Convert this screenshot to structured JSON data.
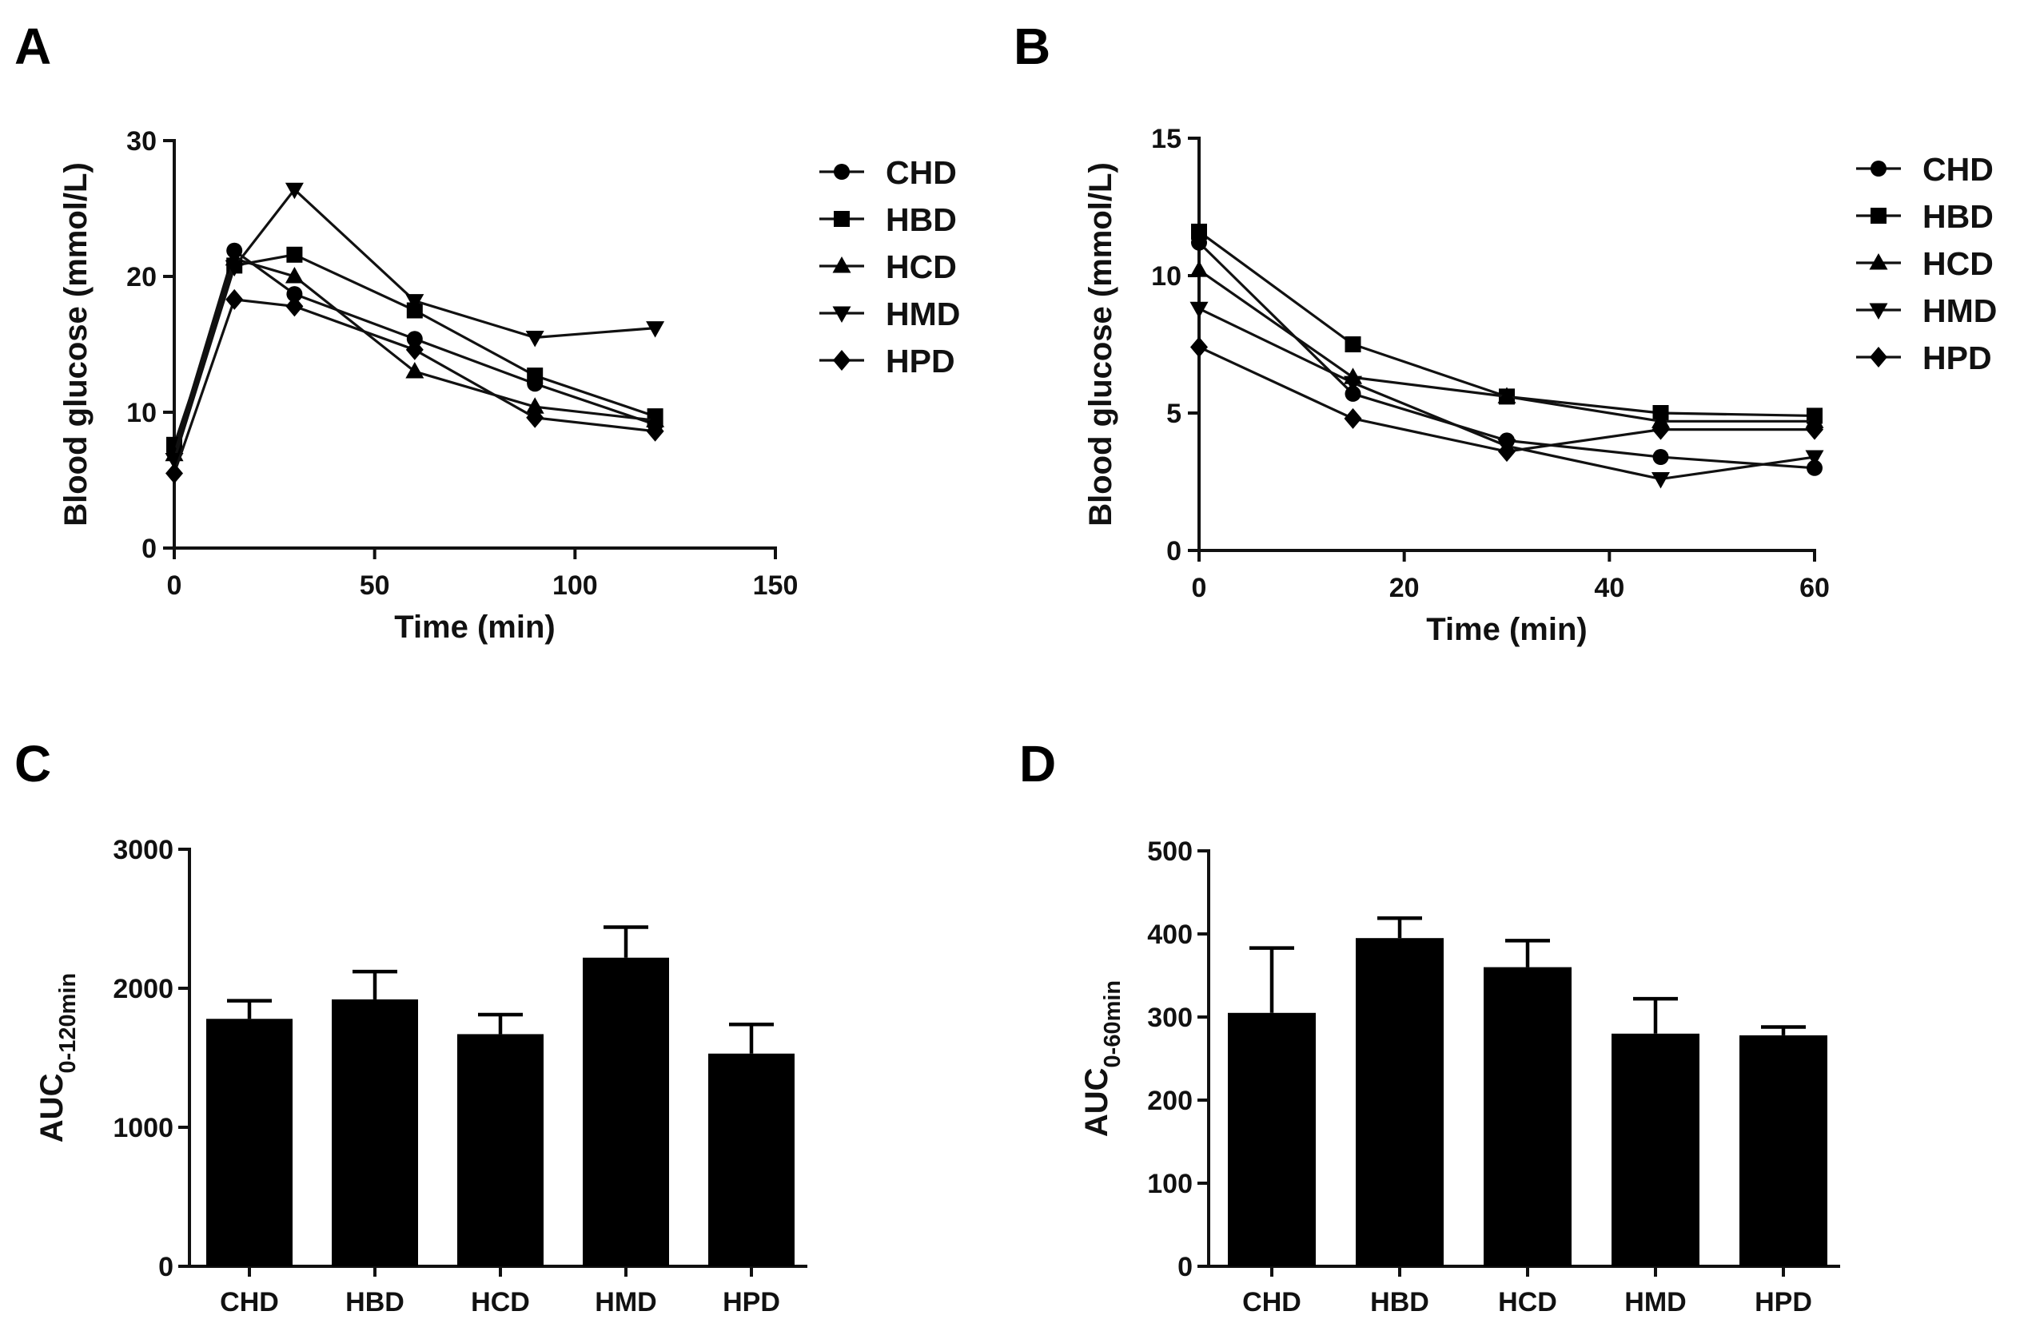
{
  "panels": [
    {
      "id": "A",
      "label": "A",
      "chart_data": {
        "type": "line",
        "xlabel": "Time (min)",
        "ylabel": "Blood glucose (mmol/L)",
        "xlim": [
          0,
          150
        ],
        "ylim": [
          0,
          30
        ],
        "xticks": [
          "0",
          "50",
          "100",
          "150"
        ],
        "yticks": [
          "0",
          "10",
          "20",
          "30"
        ],
        "x": [
          0,
          15,
          30,
          60,
          90,
          120
        ],
        "legend_position": "right",
        "series": [
          {
            "name": "CHD",
            "marker": "circle",
            "values": [
              7.2,
              21.9,
              18.7,
              15.4,
              12.1,
              9.1
            ]
          },
          {
            "name": "HBD",
            "marker": "square",
            "values": [
              7.6,
              20.8,
              21.6,
              17.5,
              12.7,
              9.7
            ]
          },
          {
            "name": "HCD",
            "marker": "triangle-up",
            "values": [
              6.9,
              21.3,
              20.0,
              13.0,
              10.4,
              9.4
            ]
          },
          {
            "name": "HMD",
            "marker": "triangle-down",
            "values": [
              6.5,
              20.7,
              26.4,
              18.2,
              15.5,
              16.2
            ]
          },
          {
            "name": "HPD",
            "marker": "diamond",
            "values": [
              5.5,
              18.3,
              17.8,
              14.6,
              9.6,
              8.6
            ]
          }
        ]
      }
    },
    {
      "id": "B",
      "label": "B",
      "chart_data": {
        "type": "line",
        "xlabel": "Time (min)",
        "ylabel": "Blood glucose (mmol/L)",
        "xlim": [
          0,
          60
        ],
        "ylim": [
          0,
          15
        ],
        "xticks": [
          "0",
          "20",
          "40",
          "60"
        ],
        "yticks": [
          "0",
          "5",
          "10",
          "15"
        ],
        "x": [
          0,
          15,
          30,
          45,
          60
        ],
        "legend_position": "right",
        "series": [
          {
            "name": "CHD",
            "marker": "circle",
            "values": [
              11.2,
              5.7,
              4.0,
              3.4,
              3.0
            ]
          },
          {
            "name": "HBD",
            "marker": "square",
            "values": [
              11.6,
              7.5,
              5.6,
              5.0,
              4.9
            ]
          },
          {
            "name": "HCD",
            "marker": "triangle-up",
            "values": [
              10.2,
              6.3,
              5.6,
              4.7,
              4.7
            ]
          },
          {
            "name": "HMD",
            "marker": "triangle-down",
            "values": [
              8.8,
              6.1,
              3.8,
              2.6,
              3.4
            ]
          },
          {
            "name": "HPD",
            "marker": "diamond",
            "values": [
              7.4,
              4.8,
              3.6,
              4.4,
              4.4
            ]
          }
        ]
      }
    },
    {
      "id": "C",
      "label": "C",
      "chart_data": {
        "type": "bar",
        "ylabel_main": "AUC",
        "ylabel_sub": "0-120min",
        "ylim": [
          0,
          3000
        ],
        "yticks": [
          "0",
          "1000",
          "2000",
          "3000"
        ],
        "categories": [
          "CHD",
          "HBD",
          "HCD",
          "HMD",
          "HPD"
        ],
        "values": [
          1780,
          1920,
          1670,
          2220,
          1530
        ],
        "errors": [
          130,
          200,
          140,
          220,
          210
        ]
      }
    },
    {
      "id": "D",
      "label": "D",
      "chart_data": {
        "type": "bar",
        "ylabel_main": "AUC",
        "ylabel_sub": "0-60min",
        "ylim": [
          0,
          500
        ],
        "yticks": [
          "0",
          "100",
          "200",
          "300",
          "400",
          "500"
        ],
        "categories": [
          "CHD",
          "HBD",
          "HCD",
          "HMD",
          "HPD"
        ],
        "values": [
          305,
          395,
          360,
          280,
          278
        ],
        "errors": [
          78,
          24,
          32,
          42,
          10
        ]
      }
    }
  ]
}
